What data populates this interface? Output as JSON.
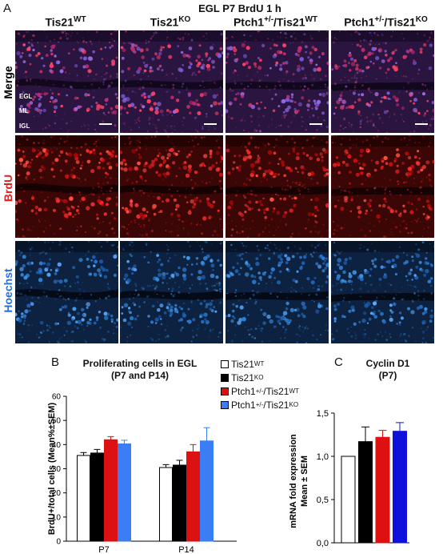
{
  "panel_a": {
    "letter": "A",
    "title": "EGL P7 BrdU 1 h",
    "columns": [
      {
        "base": "Tis21",
        "sup": "WT"
      },
      {
        "base": "Tis21",
        "sup": "KO"
      },
      {
        "base": "Ptch1",
        "sup": "+/-",
        "base2": "/Tis21",
        "sup2": "WT"
      },
      {
        "base": "Ptch1",
        "sup": "+/-",
        "base2": "/Tis21",
        "sup2": "KO"
      }
    ],
    "rows": [
      {
        "label": "Merge",
        "color": "#000000"
      },
      {
        "label": "BrdU",
        "color": "#e02020"
      },
      {
        "label": "Hoechst",
        "color": "#2a6fd6"
      }
    ],
    "layer_labels": [
      "EGL",
      "ML",
      "IGL"
    ]
  },
  "panel_b": {
    "letter": "B",
    "title_line1": "Proliferating cells in EGL",
    "title_line2": "(P7 and P14)",
    "legend": [
      {
        "base": "Tis21",
        "sup": "WT",
        "base2": "",
        "sup2": "",
        "color": "#ffffff"
      },
      {
        "base": "Tis21",
        "sup": "KO",
        "base2": "",
        "sup2": "",
        "color": "#000000"
      },
      {
        "base": "Ptch1",
        "sup": "+/-",
        "base2": "/Tis21",
        "sup2": "WT",
        "color": "#dd1111"
      },
      {
        "base": "Ptch1",
        "sup": "+/-",
        "base2": "/Tis21",
        "sup2": "KO",
        "color": "#3b7df5"
      }
    ]
  },
  "panel_c": {
    "letter": "C",
    "title_line1": "Cyclin D1",
    "title_line2": "(P7)"
  },
  "chart_data": [
    {
      "type": "bar",
      "title": "Proliferating cells in EGL (P7 and P14)",
      "ylabel": "BrdU+/total cells (Mean%±SEM)",
      "xlabel": "",
      "ylim": [
        0,
        60
      ],
      "yticks": [
        "0",
        "10",
        "20",
        "30",
        "40",
        "50",
        "60"
      ],
      "categories": [
        "P7",
        "P14"
      ],
      "series": [
        {
          "name": "Tis21WT",
          "color": "#ffffff",
          "values": [
            35.5,
            30.5
          ],
          "errors": [
            1.2,
            1.2
          ]
        },
        {
          "name": "Tis21KO",
          "color": "#000000",
          "values": [
            36.5,
            31.5
          ],
          "errors": [
            1.5,
            2.0
          ]
        },
        {
          "name": "Ptch1+/-/Tis21WT",
          "color": "#dd1111",
          "values": [
            42.0,
            37.0
          ],
          "errors": [
            1.3,
            3.0
          ]
        },
        {
          "name": "Ptch1+/-/Tis21KO",
          "color": "#3b7df5",
          "values": [
            40.3,
            41.5
          ],
          "errors": [
            1.5,
            5.5
          ]
        }
      ]
    },
    {
      "type": "bar",
      "title": "Cyclin D1 (P7)",
      "ylabel_line1": "mRNA fold expression",
      "ylabel_line2": "Mean ± SEM",
      "ylim": [
        0,
        1.5
      ],
      "yticks": [
        "0,0",
        "0,5",
        "1,0",
        "1,5"
      ],
      "categories": [
        "Tis21WT",
        "Tis21KO",
        "Ptch1+/-/Tis21WT",
        "Ptch1+/-/Tis21KO"
      ],
      "values": [
        1.0,
        1.17,
        1.22,
        1.29
      ],
      "errors": [
        0,
        0.17,
        0.08,
        0.1
      ],
      "colors": [
        "#ffffff",
        "#000000",
        "#dd1111",
        "#1010dd"
      ]
    }
  ]
}
